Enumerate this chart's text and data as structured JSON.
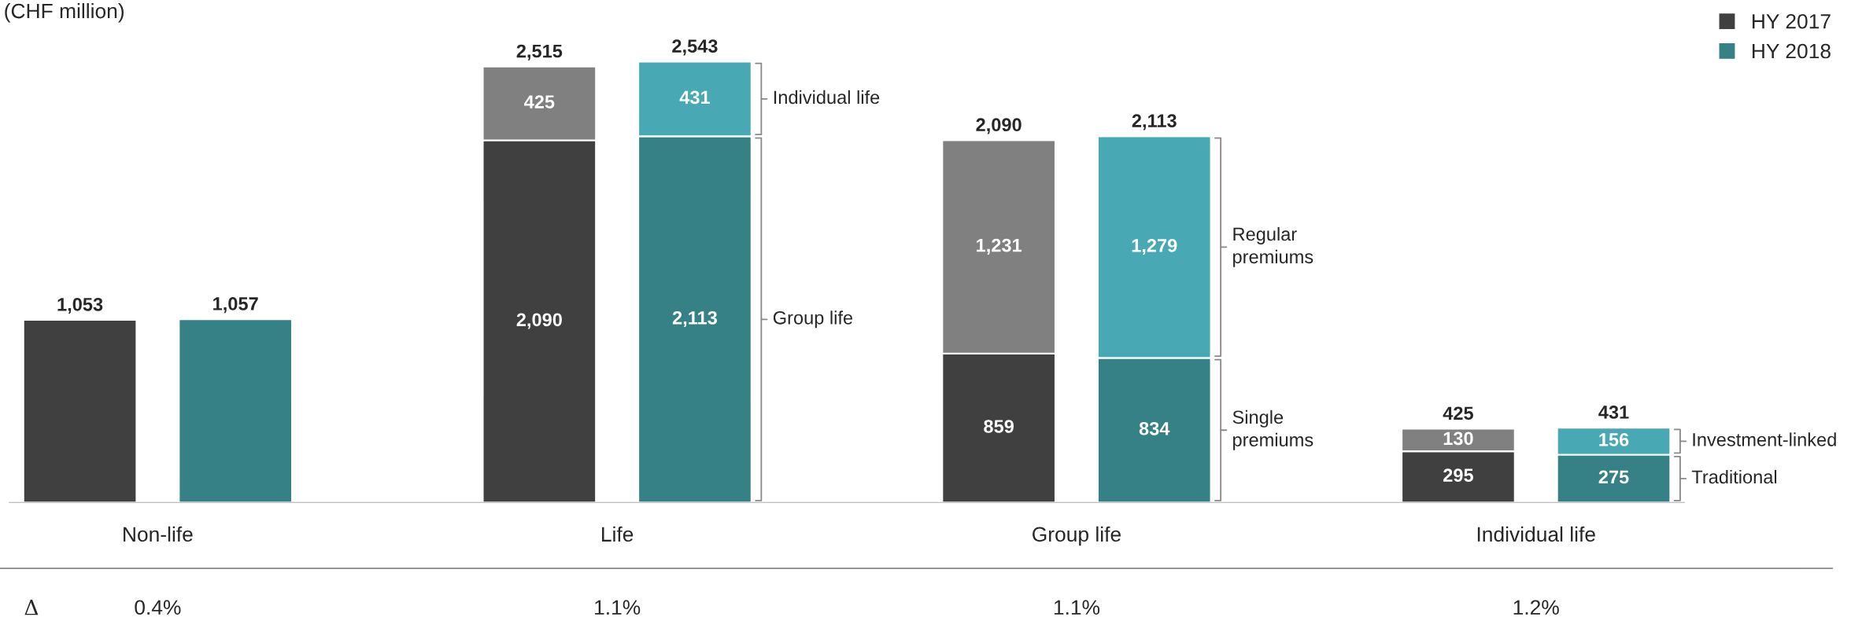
{
  "chart_data": {
    "type": "bar",
    "title": "(CHF million)",
    "stacked": true,
    "data_labels": true,
    "legend": "top right",
    "categories": [
      null,
      null,
      null,
      null,
      null,
      null,
      null,
      null
    ],
    "series": [
      {
        "name": "HY 2017",
        "color": "#404040",
        "values": [
          1053,
          null,
          2090,
          null,
          859,
          null,
          295,
          null
        ],
        "value_labels": [
          null,
          null,
          "2,090",
          null,
          "859",
          null,
          "295",
          null
        ]
      },
      {
        "name": "HY 2018",
        "color": "#368186",
        "values": [
          null,
          1057,
          null,
          2113,
          null,
          834,
          null,
          275
        ],
        "value_labels": [
          null,
          null,
          null,
          "2,113",
          null,
          "834",
          null,
          "275"
        ]
      },
      {
        "color": "#808080",
        "values": [
          null,
          null,
          425,
          null,
          1231,
          null,
          130,
          null
        ],
        "value_labels": [
          null,
          null,
          "425",
          null,
          "1,231",
          null,
          "130",
          null
        ]
      },
      {
        "color": "#48a9b5",
        "values": [
          null,
          null,
          null,
          431,
          null,
          1279,
          null,
          156
        ],
        "value_labels": [
          null,
          null,
          null,
          "431",
          null,
          "1,279",
          null,
          "156"
        ]
      }
    ],
    "totals": [
      "1,053",
      "1,057",
      "2,515",
      "2,543",
      "2,090",
      "2,113",
      "425",
      "431"
    ],
    "annotations": [
      "Non-life",
      "Life",
      "Group life",
      "Individual life",
      "Individual life",
      "Group life",
      "Regular\npremiums",
      "Single\npremiums",
      "Investment-linked",
      "Traditional",
      "Δ",
      "0.4%",
      "1.1%",
      "1.1%",
      "1.2%"
    ]
  }
}
